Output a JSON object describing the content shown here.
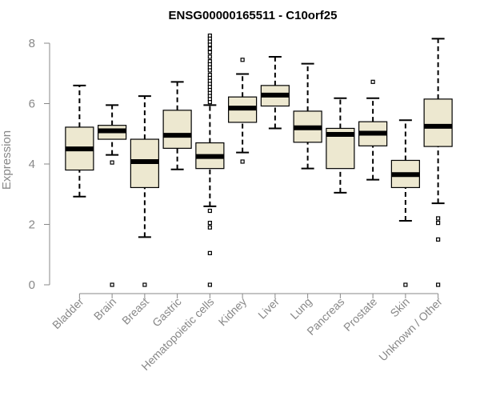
{
  "chart_data": {
    "type": "boxplot",
    "title": "ENSG00000165511 - C10orf25",
    "ylabel": "Expression",
    "xlabel": "",
    "ylim": [
      0,
      8.3
    ],
    "yticks": [
      0,
      2,
      4,
      6,
      8
    ],
    "grid": false,
    "colors": {
      "box_fill": "#ede8d0",
      "box_stroke": "#000000",
      "median": "#000000",
      "axis": "#888888"
    },
    "categories": [
      {
        "name": "Bladder",
        "min": 2.92,
        "q1": 3.8,
        "median": 4.5,
        "q3": 5.22,
        "max": 6.6,
        "outliers": []
      },
      {
        "name": "Brain",
        "min": 4.3,
        "q1": 4.82,
        "median": 5.1,
        "q3": 5.28,
        "max": 5.95,
        "outliers": [
          4.05,
          0
        ]
      },
      {
        "name": "Breast",
        "min": 1.58,
        "q1": 3.22,
        "median": 4.08,
        "q3": 4.82,
        "max": 6.25,
        "outliers": [
          0
        ]
      },
      {
        "name": "Gastric",
        "min": 3.82,
        "q1": 4.52,
        "median": 4.95,
        "q3": 5.78,
        "max": 6.72,
        "outliers": []
      },
      {
        "name": "Hematopoietic cells",
        "min": 2.6,
        "q1": 3.85,
        "median": 4.25,
        "q3": 4.7,
        "max": 5.95,
        "outliers": [
          8.25,
          8.15,
          8.05,
          7.95,
          7.82,
          7.7,
          7.55,
          7.4,
          7.3,
          7.2,
          7.1,
          6.95,
          6.85,
          6.75,
          6.65,
          6.55,
          6.45,
          6.35,
          6.25,
          6.15,
          6.05,
          2.45,
          2.05,
          1.9,
          1.05,
          0
        ]
      },
      {
        "name": "Kidney",
        "min": 4.38,
        "q1": 5.38,
        "median": 5.85,
        "q3": 6.22,
        "max": 6.98,
        "outliers": [
          7.45,
          4.08
        ]
      },
      {
        "name": "Liver",
        "min": 5.18,
        "q1": 5.92,
        "median": 6.28,
        "q3": 6.6,
        "max": 7.55,
        "outliers": []
      },
      {
        "name": "Lung",
        "min": 3.85,
        "q1": 4.72,
        "median": 5.2,
        "q3": 5.75,
        "max": 7.32,
        "outliers": []
      },
      {
        "name": "Pancreas",
        "min": 3.05,
        "q1": 3.85,
        "median": 4.98,
        "q3": 5.18,
        "max": 6.18,
        "outliers": []
      },
      {
        "name": "Prostate",
        "min": 3.48,
        "q1": 4.6,
        "median": 5.02,
        "q3": 5.4,
        "max": 6.18,
        "outliers": [
          6.72
        ]
      },
      {
        "name": "Skin",
        "min": 2.12,
        "q1": 3.22,
        "median": 3.65,
        "q3": 4.12,
        "max": 5.45,
        "outliers": [
          0
        ]
      },
      {
        "name": "Unknown / Other",
        "min": 2.7,
        "q1": 4.58,
        "median": 5.25,
        "q3": 6.15,
        "max": 8.15,
        "outliers": [
          2.2,
          2.05,
          1.5,
          0
        ]
      }
    ]
  }
}
